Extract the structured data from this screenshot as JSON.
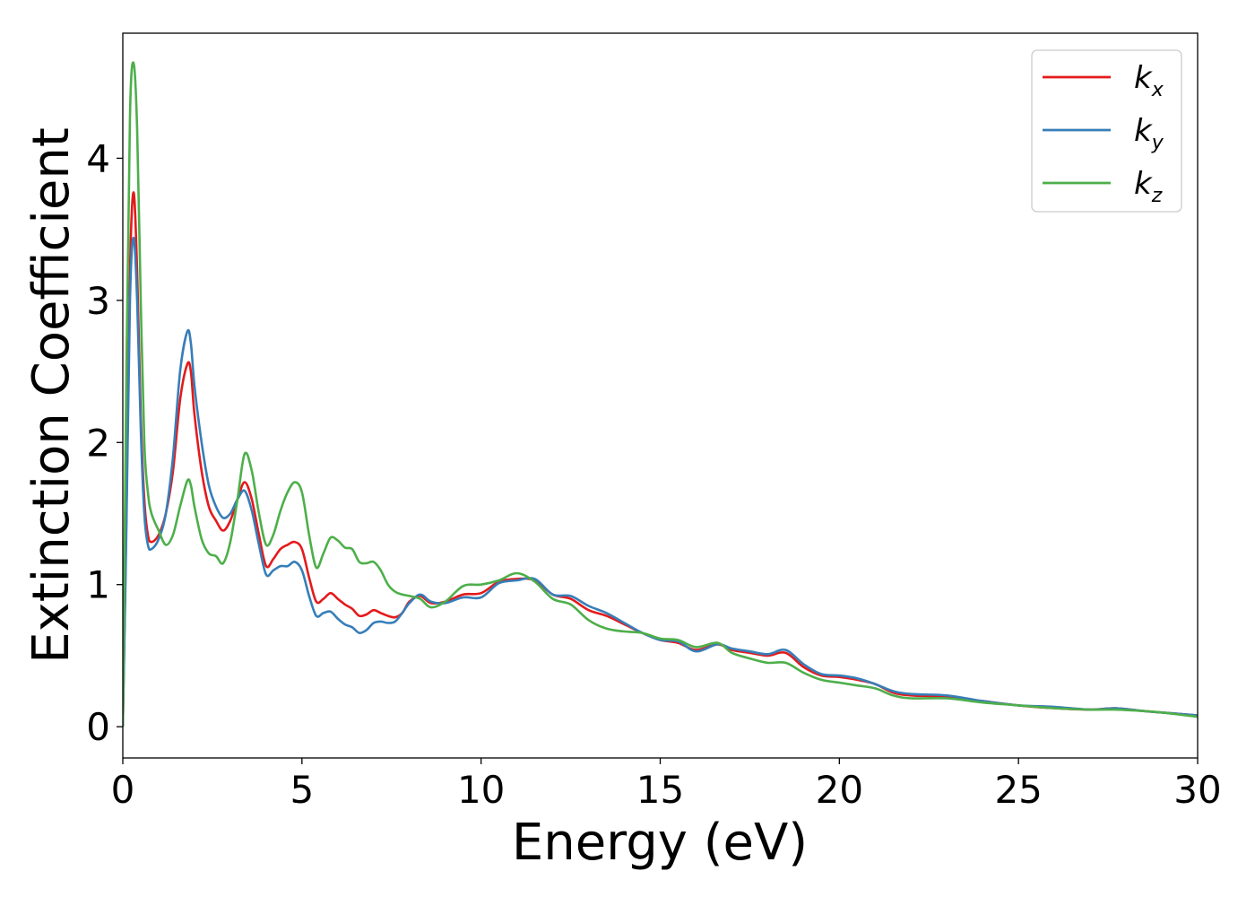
{
  "chart_data": {
    "type": "line",
    "xlabel": "Energy (eV)",
    "ylabel": "Extinction Coefficient",
    "xlim": [
      0,
      30
    ],
    "ylim": [
      -0.22,
      4.88
    ],
    "xticks": [
      0,
      5,
      10,
      15,
      20,
      25,
      30
    ],
    "yticks": [
      0,
      1,
      2,
      3,
      4
    ],
    "grid": false,
    "legend_position": "top-right",
    "series": [
      {
        "name": "k_x",
        "label_main": "k",
        "label_sub": "x",
        "color": "#e41a1c",
        "x": [
          0,
          0.1,
          0.2,
          0.3,
          0.4,
          0.5,
          0.6,
          0.7,
          0.8,
          1.0,
          1.2,
          1.4,
          1.6,
          1.8,
          1.9,
          2.0,
          2.2,
          2.4,
          2.6,
          2.8,
          3.0,
          3.2,
          3.4,
          3.6,
          3.8,
          4.0,
          4.2,
          4.4,
          4.6,
          4.8,
          5.0,
          5.2,
          5.4,
          5.6,
          5.8,
          6.0,
          6.2,
          6.4,
          6.6,
          6.8,
          7.0,
          7.2,
          7.4,
          7.6,
          7.8,
          8.0,
          8.3,
          8.6,
          9.0,
          9.5,
          10.0,
          10.5,
          11.0,
          11.5,
          12.0,
          12.5,
          13.0,
          13.5,
          14.0,
          14.5,
          15.0,
          15.5,
          16.0,
          16.6,
          17.0,
          17.5,
          18.0,
          18.5,
          19.0,
          19.5,
          20.0,
          20.5,
          21.0,
          21.5,
          22.0,
          23.0,
          24.0,
          25.0,
          26.0,
          27.0,
          27.7,
          28.5,
          29.0,
          30.0
        ],
        "y": [
          0,
          1.5,
          3.2,
          3.76,
          3.2,
          2.2,
          1.6,
          1.35,
          1.3,
          1.35,
          1.5,
          1.8,
          2.3,
          2.55,
          2.5,
          2.2,
          1.8,
          1.55,
          1.45,
          1.38,
          1.45,
          1.6,
          1.72,
          1.6,
          1.35,
          1.13,
          1.18,
          1.25,
          1.28,
          1.3,
          1.25,
          1.05,
          0.88,
          0.9,
          0.94,
          0.9,
          0.86,
          0.83,
          0.78,
          0.79,
          0.82,
          0.8,
          0.78,
          0.77,
          0.8,
          0.88,
          0.92,
          0.87,
          0.88,
          0.93,
          0.94,
          1.02,
          1.04,
          1.03,
          0.93,
          0.9,
          0.82,
          0.78,
          0.72,
          0.66,
          0.61,
          0.59,
          0.54,
          0.58,
          0.54,
          0.52,
          0.5,
          0.52,
          0.42,
          0.36,
          0.35,
          0.33,
          0.3,
          0.24,
          0.22,
          0.21,
          0.18,
          0.15,
          0.13,
          0.12,
          0.13,
          0.11,
          0.1,
          0.08
        ]
      },
      {
        "name": "k_y",
        "label_main": "k",
        "label_sub": "y",
        "color": "#377eb8",
        "x": [
          0,
          0.1,
          0.2,
          0.3,
          0.4,
          0.5,
          0.6,
          0.7,
          0.8,
          1.0,
          1.2,
          1.4,
          1.6,
          1.8,
          1.9,
          2.0,
          2.2,
          2.4,
          2.6,
          2.8,
          3.0,
          3.2,
          3.4,
          3.6,
          3.8,
          4.0,
          4.2,
          4.4,
          4.6,
          4.8,
          5.0,
          5.2,
          5.4,
          5.6,
          5.8,
          6.0,
          6.2,
          6.4,
          6.6,
          6.8,
          7.0,
          7.2,
          7.4,
          7.6,
          7.8,
          8.0,
          8.3,
          8.6,
          9.0,
          9.5,
          10.0,
          10.5,
          11.0,
          11.5,
          12.0,
          12.5,
          13.0,
          13.5,
          14.0,
          14.5,
          15.0,
          15.5,
          16.0,
          16.6,
          17.0,
          17.5,
          18.0,
          18.5,
          19.0,
          19.5,
          20.0,
          20.5,
          21.0,
          21.5,
          22.0,
          23.0,
          24.0,
          25.0,
          26.0,
          27.0,
          27.7,
          28.5,
          29.0,
          30.0
        ],
        "y": [
          0,
          1.4,
          3.0,
          3.44,
          3.0,
          2.1,
          1.5,
          1.28,
          1.25,
          1.32,
          1.5,
          1.9,
          2.5,
          2.78,
          2.7,
          2.4,
          2.0,
          1.7,
          1.55,
          1.47,
          1.5,
          1.6,
          1.66,
          1.52,
          1.28,
          1.07,
          1.1,
          1.13,
          1.13,
          1.16,
          1.1,
          0.92,
          0.78,
          0.8,
          0.81,
          0.76,
          0.72,
          0.7,
          0.66,
          0.68,
          0.73,
          0.74,
          0.73,
          0.74,
          0.8,
          0.87,
          0.93,
          0.88,
          0.87,
          0.91,
          0.91,
          1.01,
          1.03,
          1.04,
          0.93,
          0.92,
          0.85,
          0.8,
          0.73,
          0.66,
          0.61,
          0.6,
          0.53,
          0.58,
          0.55,
          0.53,
          0.51,
          0.54,
          0.44,
          0.37,
          0.36,
          0.34,
          0.3,
          0.25,
          0.23,
          0.22,
          0.18,
          0.15,
          0.14,
          0.12,
          0.13,
          0.11,
          0.1,
          0.08
        ]
      },
      {
        "name": "k_z",
        "label_main": "k",
        "label_sub": "z",
        "color": "#4daf4a",
        "x": [
          0,
          0.1,
          0.2,
          0.3,
          0.4,
          0.5,
          0.6,
          0.7,
          0.8,
          1.0,
          1.2,
          1.4,
          1.6,
          1.8,
          1.9,
          2.0,
          2.2,
          2.4,
          2.6,
          2.8,
          3.0,
          3.2,
          3.4,
          3.6,
          3.8,
          4.0,
          4.2,
          4.4,
          4.6,
          4.8,
          5.0,
          5.2,
          5.4,
          5.6,
          5.8,
          6.0,
          6.2,
          6.4,
          6.6,
          6.8,
          7.0,
          7.2,
          7.4,
          7.6,
          7.8,
          8.0,
          8.3,
          8.6,
          9.0,
          9.5,
          10.0,
          10.5,
          11.0,
          11.5,
          12.0,
          12.5,
          13.0,
          13.5,
          14.0,
          14.5,
          15.0,
          15.5,
          16.0,
          16.6,
          17.0,
          17.5,
          18.0,
          18.5,
          19.0,
          19.5,
          20.0,
          20.5,
          21.0,
          21.5,
          22.0,
          23.0,
          24.0,
          25.0,
          26.0,
          27.0,
          27.7,
          28.5,
          29.0,
          30.0
        ],
        "y": [
          0,
          2.5,
          4.3,
          4.67,
          4.2,
          3.0,
          2.0,
          1.65,
          1.5,
          1.38,
          1.28,
          1.35,
          1.55,
          1.73,
          1.7,
          1.55,
          1.32,
          1.22,
          1.2,
          1.15,
          1.3,
          1.6,
          1.92,
          1.8,
          1.5,
          1.28,
          1.35,
          1.52,
          1.65,
          1.72,
          1.65,
          1.35,
          1.12,
          1.22,
          1.33,
          1.31,
          1.26,
          1.25,
          1.16,
          1.15,
          1.16,
          1.1,
          1.0,
          0.95,
          0.93,
          0.92,
          0.9,
          0.84,
          0.88,
          0.99,
          1.0,
          1.03,
          1.08,
          1.02,
          0.9,
          0.86,
          0.75,
          0.69,
          0.67,
          0.66,
          0.62,
          0.61,
          0.56,
          0.59,
          0.52,
          0.48,
          0.45,
          0.45,
          0.38,
          0.33,
          0.31,
          0.29,
          0.27,
          0.22,
          0.2,
          0.2,
          0.17,
          0.15,
          0.13,
          0.12,
          0.12,
          0.11,
          0.1,
          0.07
        ]
      }
    ]
  }
}
